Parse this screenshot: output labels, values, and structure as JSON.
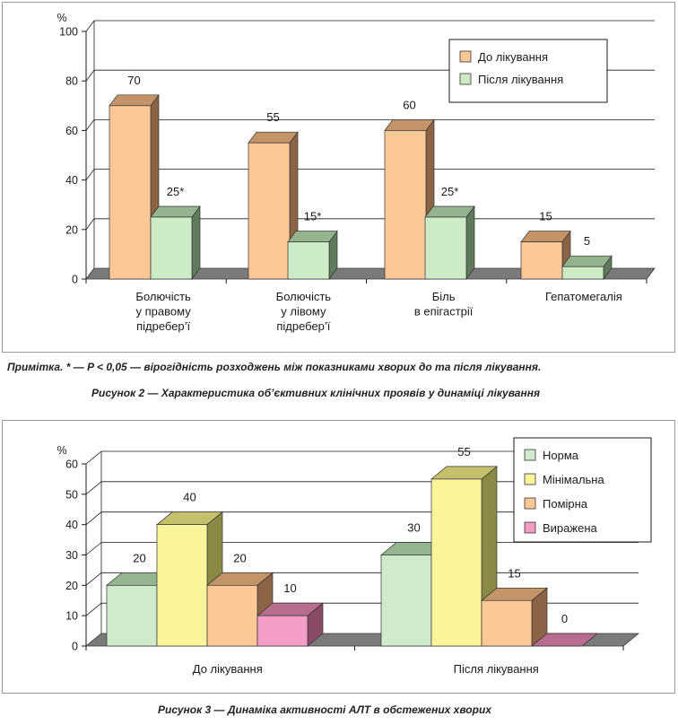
{
  "note": "Примітка. * — P < 0,05 — вірогідність розходжень між показниками хворих до та після лікування.",
  "caption1": "Рисунок 2 — Характеристика об’єктивних клінічних проявів у динаміці лікування",
  "caption2": "Рисунок 3 — Динаміка активності АЛТ в обстежених хворих",
  "chart_data": [
    {
      "type": "bar",
      "ylabel": "%",
      "ylim": [
        0,
        100
      ],
      "yticks": [
        "0",
        "20",
        "40",
        "60",
        "80",
        "100"
      ],
      "categories": [
        [
          "Болючість",
          "у правому",
          "підребер’ї"
        ],
        [
          "Болючість",
          "у лівому",
          "підребер’ї"
        ],
        [
          "Біль",
          "в епігастрії"
        ],
        [
          "Гепатомегалія"
        ]
      ],
      "series": [
        {
          "name": "До лікування",
          "values": [
            70,
            55,
            60,
            15
          ],
          "labels": [
            "70",
            "55",
            "60",
            "15"
          ],
          "color": "#fcc895",
          "side": "#8b6345",
          "top": "#c49469"
        },
        {
          "name": "Після лікування",
          "values": [
            25,
            15,
            25,
            5
          ],
          "labels": [
            "25*",
            "15*",
            "25*",
            "5"
          ],
          "color": "#cdebc6",
          "side": "#5f7b5c",
          "top": "#93b48d"
        }
      ],
      "legend": "top-right",
      "grid": true
    },
    {
      "type": "bar",
      "ylabel": "%",
      "ylim": [
        0,
        60
      ],
      "yticks": [
        "0",
        "10",
        "20",
        "30",
        "40",
        "50",
        "60"
      ],
      "categories": [
        "До лікування",
        "Після лікування"
      ],
      "series": [
        {
          "name": "Норма",
          "values": [
            20,
            30
          ],
          "labels": [
            "20",
            "30"
          ],
          "color": "#d0ebcc",
          "side": "#62805f",
          "top": "#94b68f"
        },
        {
          "name": "Мінімальна",
          "values": [
            40,
            55
          ],
          "labels": [
            "40",
            "55"
          ],
          "color": "#faf49a",
          "side": "#8a8a45",
          "top": "#c4c06b"
        },
        {
          "name": "Помірна",
          "values": [
            20,
            15
          ],
          "labels": [
            "20",
            "15"
          ],
          "color": "#fcc895",
          "side": "#8b6345",
          "top": "#c49469"
        },
        {
          "name": "Виражена",
          "values": [
            10,
            0
          ],
          "labels": [
            "10",
            "0"
          ],
          "color": "#f29cc6",
          "side": "#8a4a68",
          "top": "#b86d90"
        }
      ],
      "legend": "top-right",
      "grid": true
    }
  ]
}
